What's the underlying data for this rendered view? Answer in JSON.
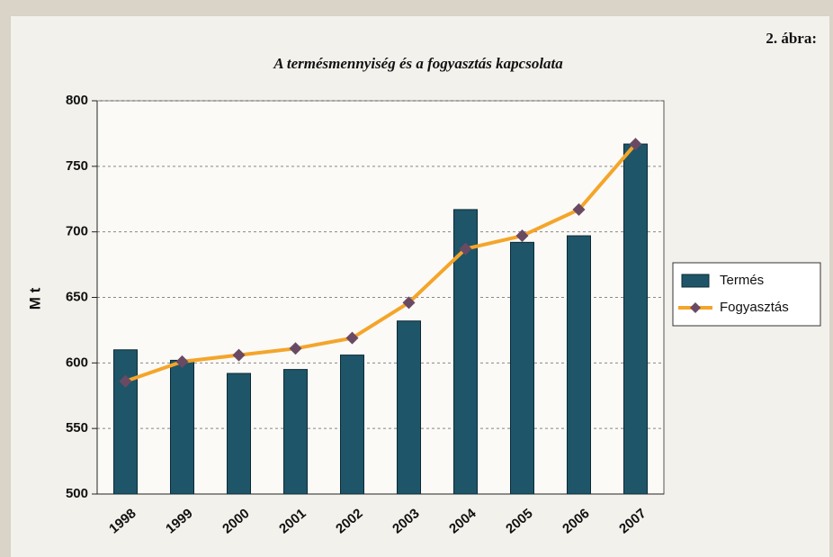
{
  "chart_data": {
    "type": "bar-line",
    "title": "A termésmennyiség és a fogyasztás kapcsolata",
    "figure_label": "2. ábra:",
    "y_label": "M t",
    "categories": [
      "1998",
      "1999",
      "2000",
      "2001",
      "2002",
      "2003",
      "2004",
      "2005",
      "2006",
      "2007"
    ],
    "series": [
      {
        "name": "Termés",
        "type": "bar",
        "color": "#1f5568",
        "values": [
          610,
          602,
          592,
          595,
          606,
          632,
          717,
          692,
          697,
          767
        ]
      },
      {
        "name": "Fogyasztás",
        "type": "line",
        "color": "#f4a52a",
        "marker_color": "#6a4a63",
        "values": [
          586,
          601,
          606,
          611,
          619,
          646,
          687,
          697,
          717,
          767
        ]
      }
    ],
    "ylim": [
      500,
      800
    ],
    "yticks": [
      500,
      550,
      600,
      650,
      700,
      750,
      800
    ],
    "grid": true,
    "legend": "right"
  }
}
